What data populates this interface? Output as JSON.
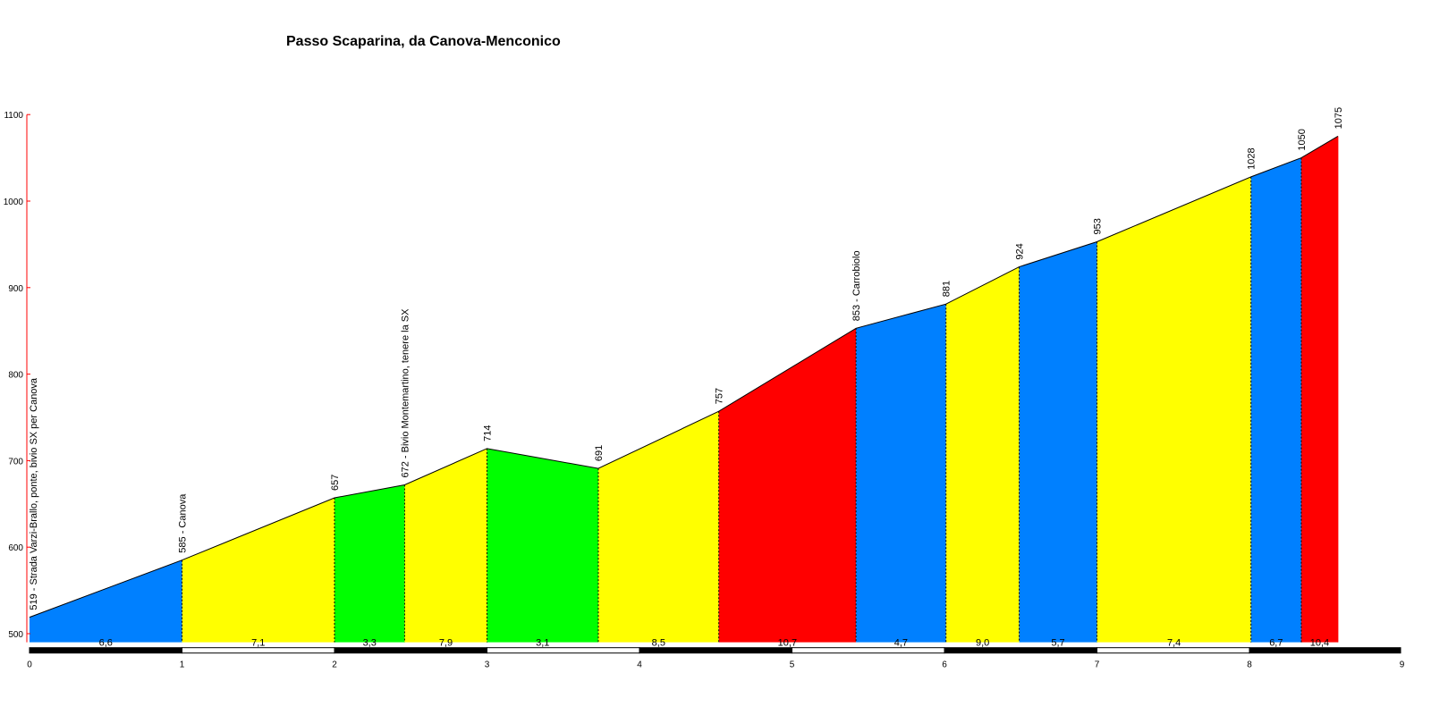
{
  "chart_data": {
    "type": "area",
    "title": "Passo Scaparina, da Canova-Menconico",
    "xlabel": "",
    "ylabel": "",
    "xlim": [
      0,
      9
    ],
    "ylim": [
      490,
      1100
    ],
    "x_ticks": [
      {
        "value": 0,
        "label": "0"
      },
      {
        "value": 1,
        "label": "1"
      },
      {
        "value": 2,
        "label": "2"
      },
      {
        "value": 3,
        "label": "3"
      },
      {
        "value": 4,
        "label": "4"
      },
      {
        "value": 5,
        "label": "5"
      },
      {
        "value": 6,
        "label": "6"
      },
      {
        "value": 7,
        "label": "7"
      },
      {
        "value": 8,
        "label": "8"
      },
      {
        "value": 9,
        "label": "9"
      }
    ],
    "y_ticks": [
      {
        "value": 500,
        "label": "500"
      },
      {
        "value": 600,
        "label": "600"
      },
      {
        "value": 700,
        "label": "700"
      },
      {
        "value": 800,
        "label": "800"
      },
      {
        "value": 900,
        "label": "900"
      },
      {
        "value": 1000,
        "label": "1000"
      },
      {
        "value": 1100,
        "label": "1100"
      }
    ],
    "points": [
      {
        "x": 0.0,
        "y": 519,
        "label": "519 - Strada Varzi-Brallo, ponte, bivio SX per Canova"
      },
      {
        "x": 1.0,
        "y": 585,
        "label": "585 - Canova"
      },
      {
        "x": 2.0,
        "y": 657,
        "label": "657"
      },
      {
        "x": 2.46,
        "y": 672,
        "label": "672 - Bivio Montemartino, tenere la SX"
      },
      {
        "x": 3.0,
        "y": 714,
        "label": "714"
      },
      {
        "x": 3.73,
        "y": 691,
        "label": "691"
      },
      {
        "x": 4.52,
        "y": 757,
        "label": "757"
      },
      {
        "x": 5.42,
        "y": 853,
        "label": "853 - Carrobiolo"
      },
      {
        "x": 6.01,
        "y": 881,
        "label": "881"
      },
      {
        "x": 6.49,
        "y": 924,
        "label": "924"
      },
      {
        "x": 7.0,
        "y": 953,
        "label": "953"
      },
      {
        "x": 8.01,
        "y": 1028,
        "label": "1028"
      },
      {
        "x": 8.34,
        "y": 1050,
        "label": "1050"
      },
      {
        "x": 8.58,
        "y": 1075,
        "label": "1075"
      }
    ],
    "segments": [
      {
        "gradient": "6,6",
        "color": "#0080ff"
      },
      {
        "gradient": "7,1",
        "color": "#ffff00"
      },
      {
        "gradient": "3,3",
        "color": "#00ff00"
      },
      {
        "gradient": "7,9",
        "color": "#ffff00"
      },
      {
        "gradient": "3,1",
        "color": "#00ff00"
      },
      {
        "gradient": "8,5",
        "color": "#ffff00"
      },
      {
        "gradient": "10,7",
        "color": "#ff0000"
      },
      {
        "gradient": "4,7",
        "color": "#0080ff"
      },
      {
        "gradient": "9,0",
        "color": "#ffff00"
      },
      {
        "gradient": "5,7",
        "color": "#0080ff"
      },
      {
        "gradient": "7,4",
        "color": "#ffff00"
      },
      {
        "gradient": "6,7",
        "color": "#0080ff"
      },
      {
        "gradient": "10,4",
        "color": "#ff0000"
      }
    ],
    "grid": false,
    "legend": "none"
  }
}
